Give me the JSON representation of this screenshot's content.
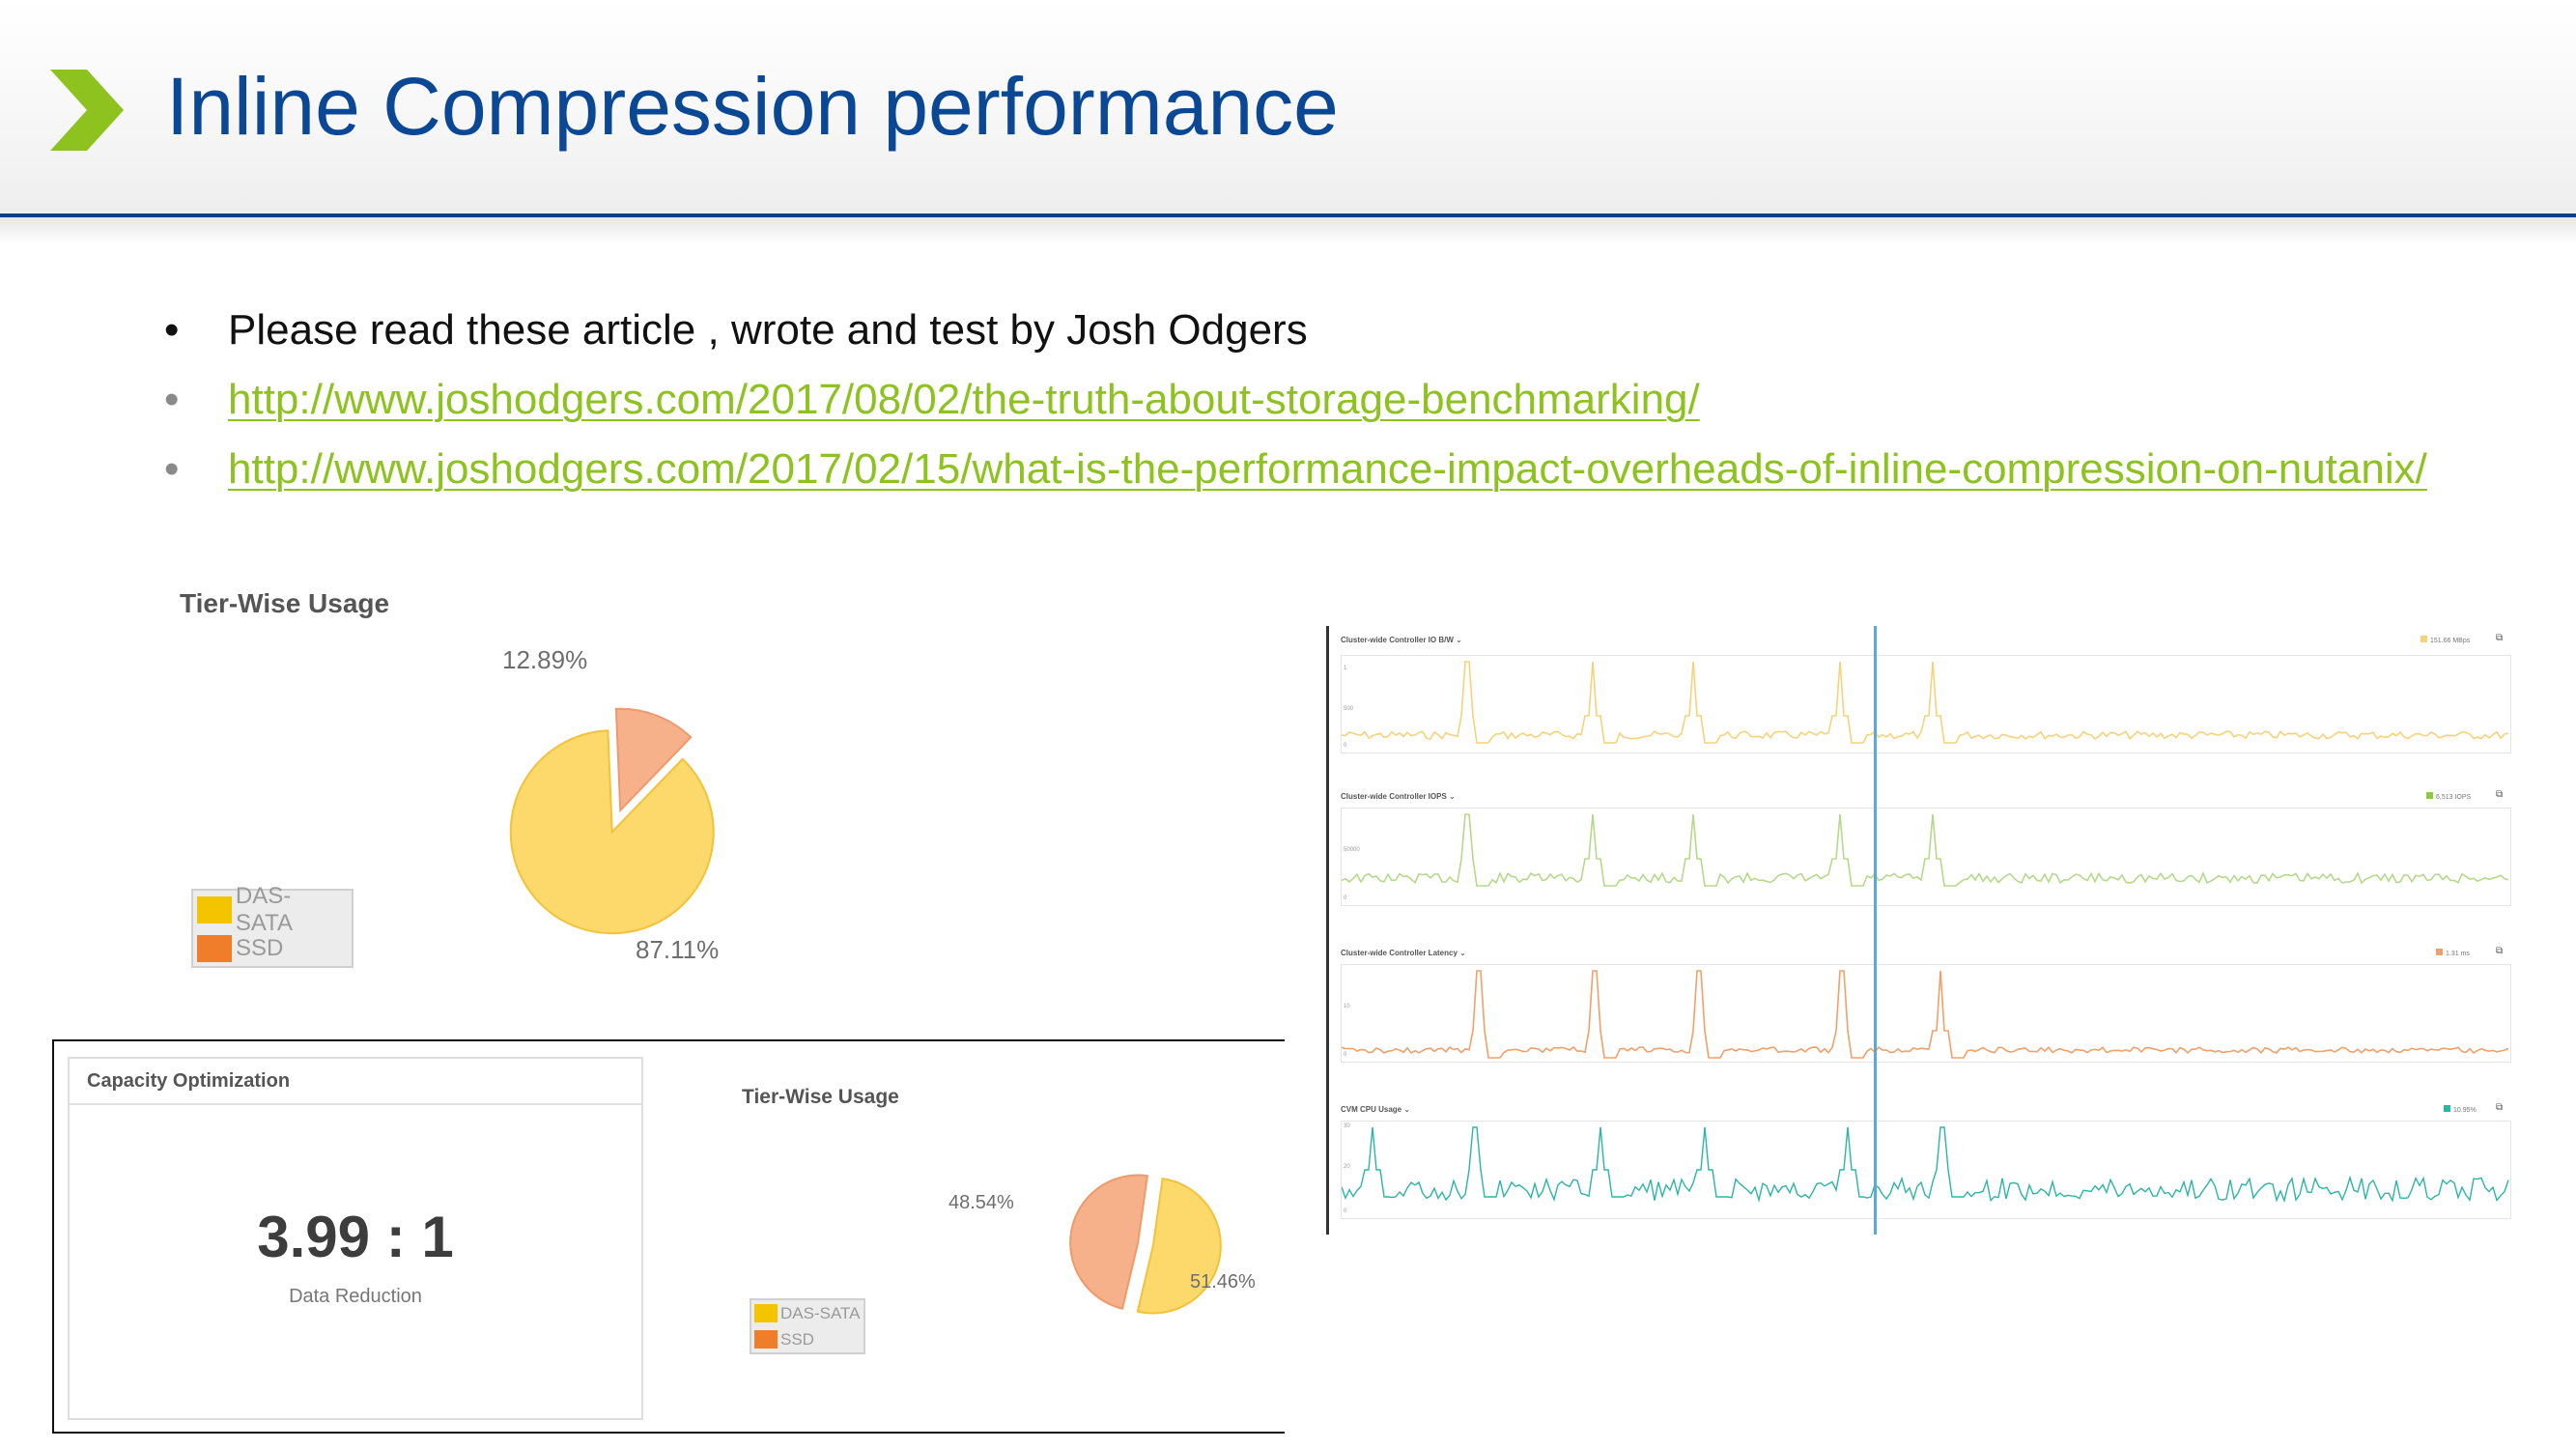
{
  "slide": {
    "title": "Inline Compression performance",
    "accent_color": "#8dc21f",
    "title_color": "#0a4896",
    "bullets": [
      {
        "text": "Please read these article , wrote and test by Josh Odgers",
        "is_link": false
      },
      {
        "text": "http://www.joshodgers.com/2017/08/02/the-truth-about-storage-benchmarking/",
        "is_link": true
      },
      {
        "text": "http://www.joshodgers.com/2017/02/15/what-is-the-performance-impact-overheads-of-inline-compression-on-nutanix/",
        "is_link": true
      }
    ]
  },
  "tier_usage_1": {
    "title": "Tier-Wise Usage",
    "pct_ssd": "12.89%",
    "pct_sata": "87.11%",
    "legend": [
      {
        "label": "DAS-SATA",
        "color": "#f5c400"
      },
      {
        "label": "SSD",
        "color": "#f07d2a"
      }
    ]
  },
  "capacity": {
    "header": "Capacity Optimization",
    "value": "3.99 : 1",
    "label": "Data Reduction"
  },
  "tier_usage_2": {
    "title": "Tier-Wise Usage",
    "pct_ssd": "48.54%",
    "pct_sata": "51.46%",
    "legend": [
      {
        "label": "DAS-SATA",
        "color": "#f5c400"
      },
      {
        "label": "SSD",
        "color": "#f07d2a"
      }
    ]
  },
  "chart_data": [
    {
      "type": "pie",
      "title": "Tier-Wise Usage",
      "labels": [
        "DAS-SATA",
        "SSD"
      ],
      "values": [
        87.11,
        12.89
      ],
      "colors": [
        "#fcd96a",
        "#f6b08a"
      ]
    },
    {
      "type": "pie",
      "title": "Tier-Wise Usage",
      "labels": [
        "DAS-SATA",
        "SSD"
      ],
      "values": [
        51.46,
        48.54
      ],
      "colors": [
        "#fcd96a",
        "#f6b08a"
      ]
    }
  ],
  "controller_charts": [
    {
      "label": "Cluster-wide Controller IO B/W ⌄",
      "legend": "151.66 MBps",
      "color": "#f6d27a",
      "y_ticks": [
        "1",
        "500",
        "0"
      ]
    },
    {
      "label": "Cluster-wide Controller IOPS ⌄",
      "legend": "6,513 IOPS",
      "color": "#b5d98a",
      "y_ticks": [
        "50000",
        "0"
      ]
    },
    {
      "label": "Cluster-wide Controller Latency ⌄",
      "legend": "1.31 ms",
      "color": "#f0a06a",
      "y_ticks": [
        "10",
        "0"
      ]
    },
    {
      "label": "CVM CPU Usage ⌄",
      "legend": "10.95%",
      "color": "#2bb5a8",
      "y_ticks": [
        "30",
        "20",
        "0"
      ]
    }
  ]
}
